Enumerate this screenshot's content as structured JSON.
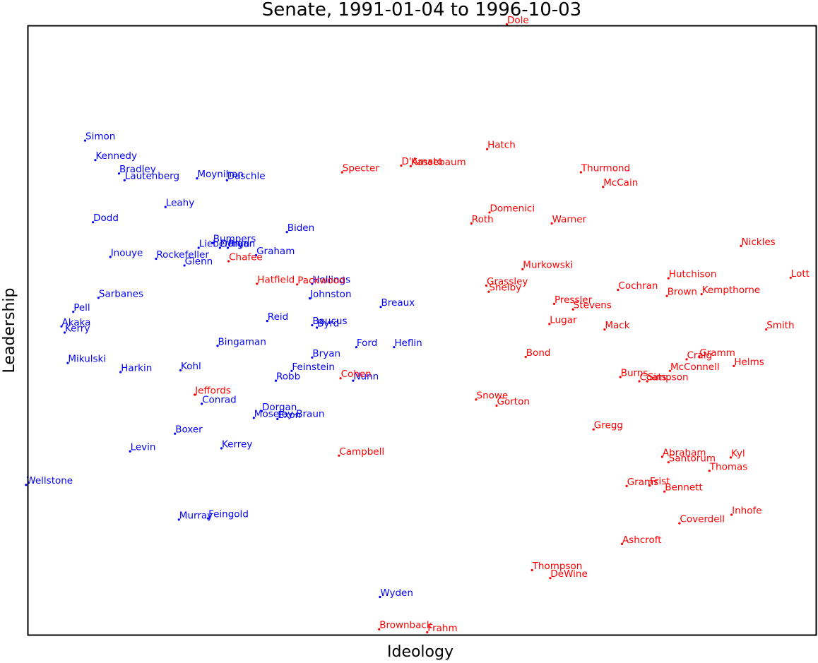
{
  "chart_data": {
    "type": "scatter",
    "title": "Senate, 1991-01-04 to 1996-10-03",
    "xlabel": "Ideology",
    "ylabel": "Leadership",
    "xlim": [
      0,
      100
    ],
    "ylim": [
      0,
      100
    ],
    "grid": false,
    "colors": {
      "D": "#0000ff",
      "R": "#ff0000"
    },
    "points": [
      {
        "name": "Dole",
        "party": "R",
        "x": 60.8,
        "y": 100.2
      },
      {
        "name": "Simon",
        "party": "D",
        "x": 7.3,
        "y": 81.1
      },
      {
        "name": "Kennedy",
        "party": "D",
        "x": 8.6,
        "y": 77.9
      },
      {
        "name": "Bradley",
        "party": "D",
        "x": 11.6,
        "y": 75.7
      },
      {
        "name": "Lautenberg",
        "party": "D",
        "x": 12.3,
        "y": 74.6
      },
      {
        "name": "Moynihan",
        "party": "D",
        "x": 21.5,
        "y": 74.9
      },
      {
        "name": "Daschle",
        "party": "D",
        "x": 25.3,
        "y": 74.6
      },
      {
        "name": "Leahy",
        "party": "D",
        "x": 17.5,
        "y": 70.2
      },
      {
        "name": "Dodd",
        "party": "D",
        "x": 8.3,
        "y": 67.7
      },
      {
        "name": "Biden",
        "party": "D",
        "x": 32.9,
        "y": 66.1
      },
      {
        "name": "Bumpers",
        "party": "D",
        "x": 23.5,
        "y": 64.3
      },
      {
        "name": "Lieberman",
        "party": "D",
        "x": 21.7,
        "y": 63.5
      },
      {
        "name": "Dorgan",
        "party": "D",
        "x": 24.4,
        "y": 63.5
      },
      {
        "name": "Pryor",
        "party": "D",
        "x": 25.4,
        "y": 63.5
      },
      {
        "name": "Graham",
        "party": "D",
        "x": 29.0,
        "y": 62.3
      },
      {
        "name": "Inouye",
        "party": "D",
        "x": 10.5,
        "y": 62.0
      },
      {
        "name": "Rockefeller",
        "party": "D",
        "x": 16.3,
        "y": 61.7
      },
      {
        "name": "Glenn",
        "party": "D",
        "x": 19.9,
        "y": 60.6
      },
      {
        "name": "Hollings",
        "party": "D",
        "x": 36.1,
        "y": 57.6
      },
      {
        "name": "Johnston",
        "party": "D",
        "x": 35.8,
        "y": 55.2
      },
      {
        "name": "Sarbanes",
        "party": "D",
        "x": 9.0,
        "y": 55.3
      },
      {
        "name": "Breaux",
        "party": "D",
        "x": 44.8,
        "y": 53.8
      },
      {
        "name": "Pell",
        "party": "D",
        "x": 5.8,
        "y": 53.0
      },
      {
        "name": "Reid",
        "party": "D",
        "x": 30.4,
        "y": 51.5
      },
      {
        "name": "Akaka",
        "party": "D",
        "x": 4.3,
        "y": 50.6
      },
      {
        "name": "Kerry",
        "party": "D",
        "x": 4.7,
        "y": 49.6
      },
      {
        "name": "Baucus",
        "party": "D",
        "x": 36.1,
        "y": 50.8
      },
      {
        "name": "Byrd",
        "party": "D",
        "x": 36.7,
        "y": 50.4
      },
      {
        "name": "Bingaman",
        "party": "D",
        "x": 24.1,
        "y": 47.4
      },
      {
        "name": "Ford",
        "party": "D",
        "x": 41.7,
        "y": 47.2
      },
      {
        "name": "Heflin",
        "party": "D",
        "x": 46.5,
        "y": 47.2
      },
      {
        "name": "Bryan",
        "party": "D",
        "x": 36.1,
        "y": 45.5
      },
      {
        "name": "Mikulski",
        "party": "D",
        "x": 5.1,
        "y": 44.6
      },
      {
        "name": "Harkin",
        "party": "D",
        "x": 11.8,
        "y": 43.1
      },
      {
        "name": "Kohl",
        "party": "D",
        "x": 19.4,
        "y": 43.4
      },
      {
        "name": "Feinstein",
        "party": "D",
        "x": 33.5,
        "y": 43.3
      },
      {
        "name": "Robb",
        "party": "D",
        "x": 31.5,
        "y": 41.7
      },
      {
        "name": "Nunn",
        "party": "D",
        "x": 41.3,
        "y": 41.7
      },
      {
        "name": "Conrad",
        "party": "D",
        "x": 22.1,
        "y": 37.9
      },
      {
        "name": "Dorgan",
        "party": "D",
        "x": 29.7,
        "y": 36.7
      },
      {
        "name": "Moseley-Braun",
        "party": "D",
        "x": 28.7,
        "y": 35.6
      },
      {
        "name": "Exon",
        "party": "D",
        "x": 31.7,
        "y": 35.4
      },
      {
        "name": "Boxer",
        "party": "D",
        "x": 18.7,
        "y": 33.0
      },
      {
        "name": "Levin",
        "party": "D",
        "x": 13.0,
        "y": 30.1
      },
      {
        "name": "Kerrey",
        "party": "D",
        "x": 24.6,
        "y": 30.6
      },
      {
        "name": "Wellstone",
        "party": "D",
        "x": -0.2,
        "y": 24.6
      },
      {
        "name": "Murray",
        "party": "D",
        "x": 19.2,
        "y": 18.9
      },
      {
        "name": "Feingold",
        "party": "D",
        "x": 22.9,
        "y": 19.1
      },
      {
        "name": "Wyden",
        "party": "D",
        "x": 44.7,
        "y": 6.2
      },
      {
        "name": "Hatch",
        "party": "R",
        "x": 58.3,
        "y": 79.7
      },
      {
        "name": "Specter",
        "party": "R",
        "x": 39.9,
        "y": 75.9
      },
      {
        "name": "D'Amato",
        "party": "R",
        "x": 47.4,
        "y": 77.0
      },
      {
        "name": "Kassebaum",
        "party": "R",
        "x": 48.6,
        "y": 76.9
      },
      {
        "name": "Thurmond",
        "party": "R",
        "x": 70.2,
        "y": 75.9
      },
      {
        "name": "McCain",
        "party": "R",
        "x": 73.0,
        "y": 73.5
      },
      {
        "name": "Domenici",
        "party": "R",
        "x": 58.6,
        "y": 69.3
      },
      {
        "name": "Roth",
        "party": "R",
        "x": 56.3,
        "y": 67.5
      },
      {
        "name": "Warner",
        "party": "R",
        "x": 66.5,
        "y": 67.5
      },
      {
        "name": "Nickles",
        "party": "R",
        "x": 90.5,
        "y": 63.8
      },
      {
        "name": "Chafee",
        "party": "R",
        "x": 25.5,
        "y": 61.3
      },
      {
        "name": "Murkowski",
        "party": "R",
        "x": 62.8,
        "y": 60.0
      },
      {
        "name": "Hatfield",
        "party": "R",
        "x": 29.1,
        "y": 57.6
      },
      {
        "name": "Packwood",
        "party": "R",
        "x": 34.2,
        "y": 57.5
      },
      {
        "name": "Hutchison",
        "party": "R",
        "x": 81.3,
        "y": 58.5
      },
      {
        "name": "Lott",
        "party": "R",
        "x": 96.8,
        "y": 58.6
      },
      {
        "name": "Grassley",
        "party": "R",
        "x": 58.2,
        "y": 57.3
      },
      {
        "name": "Shelby",
        "party": "R",
        "x": 58.5,
        "y": 56.3
      },
      {
        "name": "Cochran",
        "party": "R",
        "x": 74.9,
        "y": 56.6
      },
      {
        "name": "Brown",
        "party": "R",
        "x": 81.1,
        "y": 55.6
      },
      {
        "name": "Kempthorne",
        "party": "R",
        "x": 85.5,
        "y": 55.9
      },
      {
        "name": "Pressler",
        "party": "R",
        "x": 66.8,
        "y": 54.3
      },
      {
        "name": "Stevens",
        "party": "R",
        "x": 69.2,
        "y": 53.4
      },
      {
        "name": "Lugar",
        "party": "R",
        "x": 66.2,
        "y": 51.0
      },
      {
        "name": "Mack",
        "party": "R",
        "x": 73.2,
        "y": 50.1
      },
      {
        "name": "Smith",
        "party": "R",
        "x": 93.7,
        "y": 50.1
      },
      {
        "name": "Bond",
        "party": "R",
        "x": 63.2,
        "y": 45.6
      },
      {
        "name": "Gramm",
        "party": "R",
        "x": 85.2,
        "y": 45.6
      },
      {
        "name": "Craig",
        "party": "R",
        "x": 83.6,
        "y": 45.2
      },
      {
        "name": "McConnell",
        "party": "R",
        "x": 81.5,
        "y": 43.3
      },
      {
        "name": "Helms",
        "party": "R",
        "x": 89.6,
        "y": 44.1
      },
      {
        "name": "Burns",
        "party": "R",
        "x": 75.2,
        "y": 42.3
      },
      {
        "name": "Coats",
        "party": "R",
        "x": 77.6,
        "y": 41.6
      },
      {
        "name": "Simpson",
        "party": "R",
        "x": 78.6,
        "y": 41.6
      },
      {
        "name": "Snowe",
        "party": "R",
        "x": 56.9,
        "y": 38.6
      },
      {
        "name": "Gorton",
        "party": "R",
        "x": 59.5,
        "y": 37.6
      },
      {
        "name": "Jeffords",
        "party": "R",
        "x": 21.2,
        "y": 39.4
      },
      {
        "name": "Cohen",
        "party": "R",
        "x": 39.7,
        "y": 42.1
      },
      {
        "name": "Campbell",
        "party": "R",
        "x": 39.5,
        "y": 29.4
      },
      {
        "name": "Gregg",
        "party": "R",
        "x": 71.8,
        "y": 33.7
      },
      {
        "name": "Abraham",
        "party": "R",
        "x": 80.5,
        "y": 29.2
      },
      {
        "name": "Santorum",
        "party": "R",
        "x": 81.3,
        "y": 28.3
      },
      {
        "name": "Kyl",
        "party": "R",
        "x": 89.2,
        "y": 29.1
      },
      {
        "name": "Thomas",
        "party": "R",
        "x": 86.5,
        "y": 26.9
      },
      {
        "name": "Grams",
        "party": "R",
        "x": 76.0,
        "y": 24.4
      },
      {
        "name": "Frist",
        "party": "R",
        "x": 78.9,
        "y": 24.5
      },
      {
        "name": "Bennett",
        "party": "R",
        "x": 80.8,
        "y": 23.5
      },
      {
        "name": "Inhofe",
        "party": "R",
        "x": 89.3,
        "y": 19.7
      },
      {
        "name": "Coverdell",
        "party": "R",
        "x": 82.7,
        "y": 18.3
      },
      {
        "name": "Ashcroft",
        "party": "R",
        "x": 75.4,
        "y": 14.9
      },
      {
        "name": "Thompson",
        "party": "R",
        "x": 64.0,
        "y": 10.6
      },
      {
        "name": "DeWine",
        "party": "R",
        "x": 66.3,
        "y": 9.3
      },
      {
        "name": "Brownback",
        "party": "R",
        "x": 44.6,
        "y": 0.9
      },
      {
        "name": "Frahm",
        "party": "R",
        "x": 50.7,
        "y": 0.4
      }
    ]
  }
}
